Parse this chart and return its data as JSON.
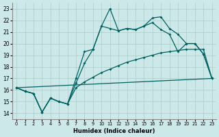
{
  "xlabel": "Humidex (Indice chaleur)",
  "xlim": [
    -0.5,
    23.5
  ],
  "ylim": [
    13.5,
    23.5
  ],
  "xticks": [
    0,
    1,
    2,
    3,
    4,
    5,
    6,
    7,
    8,
    9,
    10,
    11,
    12,
    13,
    14,
    15,
    16,
    17,
    18,
    19,
    20,
    21,
    22,
    23
  ],
  "yticks": [
    14,
    15,
    16,
    17,
    18,
    19,
    20,
    21,
    22,
    23
  ],
  "bg_color": "#cce8e8",
  "line_color": "#006060",
  "grid_color": "#aacccc",
  "line_width": 0.9,
  "marker": "D",
  "marker_size": 2.0,
  "line1_x": [
    0,
    1,
    2,
    3,
    4,
    5,
    6,
    7,
    8,
    9,
    10,
    11,
    12,
    13,
    14,
    15,
    16,
    17,
    18,
    19,
    20,
    21,
    22,
    23
  ],
  "line1_y": [
    16.2,
    15.9,
    15.7,
    14.1,
    15.3,
    15.0,
    14.8,
    16.6,
    18.3,
    19.5,
    21.5,
    23.0,
    21.1,
    21.3,
    21.2,
    21.5,
    22.2,
    22.3,
    21.3,
    20.8,
    20.0,
    20.0,
    19.1,
    17.0
  ],
  "line2_x": [
    0,
    1,
    2,
    3,
    4,
    5,
    6,
    7,
    8,
    9,
    10,
    11,
    12,
    13,
    14,
    15,
    16,
    17,
    18,
    19,
    20,
    21,
    22,
    23
  ],
  "line2_y": [
    16.2,
    15.9,
    15.7,
    14.1,
    15.3,
    15.0,
    14.8,
    17.0,
    19.3,
    19.5,
    21.5,
    21.3,
    21.1,
    21.3,
    21.2,
    21.5,
    21.8,
    21.2,
    20.8,
    19.3,
    20.0,
    20.0,
    19.1,
    17.0
  ],
  "line3_x": [
    0,
    1,
    2,
    3,
    4,
    5,
    6,
    7,
    8,
    9,
    10,
    11,
    12,
    13,
    14,
    15,
    16,
    17,
    18,
    19,
    20,
    21,
    22,
    23
  ],
  "line3_y": [
    16.2,
    15.9,
    15.7,
    14.1,
    15.3,
    15.0,
    14.8,
    16.2,
    16.7,
    17.1,
    17.5,
    17.8,
    18.1,
    18.4,
    18.6,
    18.8,
    19.0,
    19.2,
    19.3,
    19.4,
    19.5,
    19.5,
    19.5,
    17.0
  ],
  "line4_x": [
    0,
    23
  ],
  "line4_y": [
    16.2,
    17.0
  ]
}
